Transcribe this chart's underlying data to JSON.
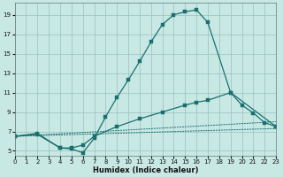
{
  "xlabel": "Humidex (Indice chaleur)",
  "bg_color": "#c8e8e4",
  "grid_color": "#9bbfbe",
  "line_color": "#1a7070",
  "xlim": [
    0,
    23
  ],
  "ylim": [
    4.5,
    20.2
  ],
  "yticks": [
    5,
    7,
    9,
    11,
    13,
    15,
    17,
    19
  ],
  "xticks": [
    0,
    1,
    2,
    3,
    4,
    5,
    6,
    7,
    8,
    9,
    10,
    11,
    12,
    13,
    14,
    15,
    16,
    17,
    18,
    19,
    20,
    21,
    22,
    23
  ],
  "line1_x": [
    0,
    2,
    4,
    5,
    6,
    7,
    8,
    9,
    10,
    11,
    12,
    13,
    14,
    15,
    16,
    17,
    19,
    23
  ],
  "line1_y": [
    6.5,
    6.8,
    5.3,
    5.2,
    4.8,
    6.3,
    8.5,
    10.5,
    12.3,
    14.2,
    16.2,
    18.0,
    19.0,
    19.3,
    19.5,
    18.2,
    11.0,
    7.5
  ],
  "line2_x": [
    0,
    2,
    4,
    5,
    6,
    7,
    9,
    11,
    13,
    15,
    16,
    17,
    19,
    20,
    21,
    22,
    23
  ],
  "line2_y": [
    6.5,
    6.7,
    5.3,
    5.3,
    5.6,
    6.5,
    7.5,
    8.3,
    9.0,
    9.7,
    10.0,
    10.2,
    11.0,
    9.7,
    8.9,
    7.9,
    7.5
  ],
  "line3_x": [
    0,
    23
  ],
  "line3_y": [
    6.5,
    8.0
  ],
  "line4_x": [
    0,
    23
  ],
  "line4_y": [
    6.5,
    7.3
  ]
}
